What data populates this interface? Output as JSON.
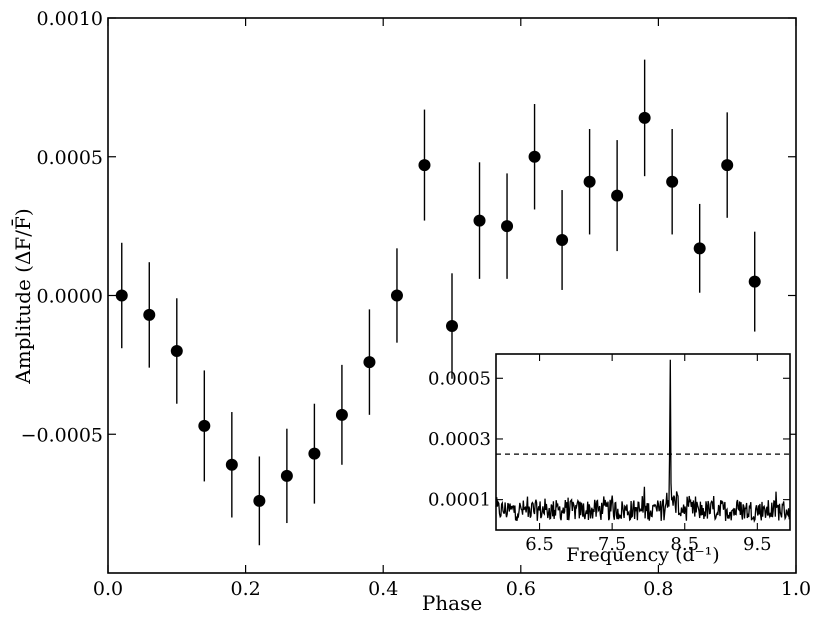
{
  "chart_data": [
    {
      "type": "scatter",
      "xlabel": "Phase",
      "ylabel": "Amplitude (ΔF/F̄)",
      "xlim": [
        0.0,
        1.0
      ],
      "ylim": [
        -0.001,
        0.001
      ],
      "x_ticks": [
        "0.0",
        "0.2",
        "0.4",
        "0.6",
        "0.8",
        "1.0"
      ],
      "y_ticks": [
        "−0.0005",
        "0.0000",
        "0.0005",
        "0.0010"
      ],
      "y_tick_values": [
        -0.0005,
        0.0,
        0.0005,
        0.001
      ],
      "marker_color": "#000000",
      "series": [
        {
          "x": [
            0.02,
            0.06,
            0.1,
            0.14,
            0.18,
            0.22,
            0.26,
            0.3,
            0.34,
            0.38,
            0.42,
            0.46,
            0.5,
            0.54,
            0.58,
            0.62,
            0.66,
            0.7,
            0.74,
            0.78,
            0.82,
            0.86,
            0.9,
            0.94
          ],
          "y": [
            0.0,
            -7e-05,
            -0.0002,
            -0.00047,
            -0.00061,
            -0.00074,
            -0.00065,
            -0.00057,
            -0.00043,
            -0.00024,
            0.0,
            0.00047,
            -0.00011,
            0.00027,
            0.00025,
            0.0005,
            0.0002,
            0.00041,
            0.00036,
            0.00064,
            0.00041,
            0.00017,
            0.00047,
            5e-05
          ],
          "yerr": [
            0.00019,
            0.00019,
            0.00019,
            0.0002,
            0.00019,
            0.00016,
            0.00017,
            0.00018,
            0.00018,
            0.00019,
            0.00017,
            0.0002,
            0.00019,
            0.00021,
            0.00019,
            0.00019,
            0.00018,
            0.00019,
            0.0002,
            0.00021,
            0.00019,
            0.00016,
            0.00019,
            0.00018
          ]
        }
      ],
      "inset": {
        "type": "line",
        "xlabel": "Frequency (d⁻¹)",
        "xlim": [
          5.9,
          9.95
        ],
        "ylim": [
          0.0,
          0.00058
        ],
        "x_ticks": [
          "6.5",
          "7.5",
          "8.5",
          "9.5"
        ],
        "x_tick_values": [
          6.5,
          7.5,
          8.5,
          9.5
        ],
        "y_ticks": [
          "0.0001",
          "0.0003",
          "0.0005"
        ],
        "y_tick_values": [
          0.0001,
          0.0003,
          0.0005
        ],
        "threshold": 0.00025,
        "peak_frequency": 8.3,
        "peak_amplitude": 0.0005,
        "line_color": "#000000"
      }
    }
  ]
}
